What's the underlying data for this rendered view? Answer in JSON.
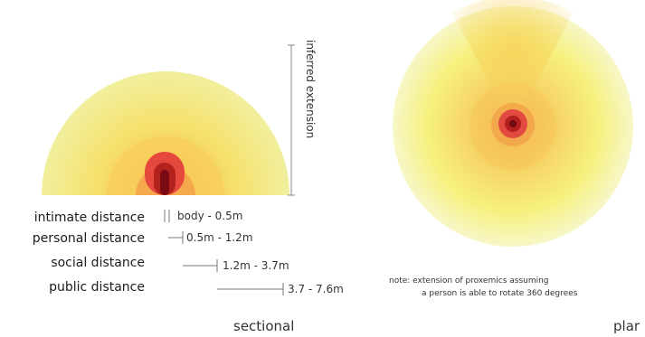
{
  "sectional": {
    "distances": [
      {
        "name": "intimate distance",
        "range": "body - 0.5m"
      },
      {
        "name": "personal distance",
        "range": "0.5m - 1.2m"
      },
      {
        "name": "social distance",
        "range": "1.2m - 3.7m"
      },
      {
        "name": "public distance",
        "range": "3.7 - 7.6m"
      }
    ],
    "extension_label": "inferred extension",
    "caption": "sectional"
  },
  "plan": {
    "note_line1": "note: extension of proxemics assuming",
    "note_line2": "a person is able to rotate 360 degrees",
    "caption": "plar"
  },
  "colors": {
    "outer": "#f3f3a6",
    "public": "#f6f07a",
    "social": "#f9d35a",
    "personal": "#f5a84a",
    "intimate": "#e0443a",
    "body": "#8c0d16"
  }
}
